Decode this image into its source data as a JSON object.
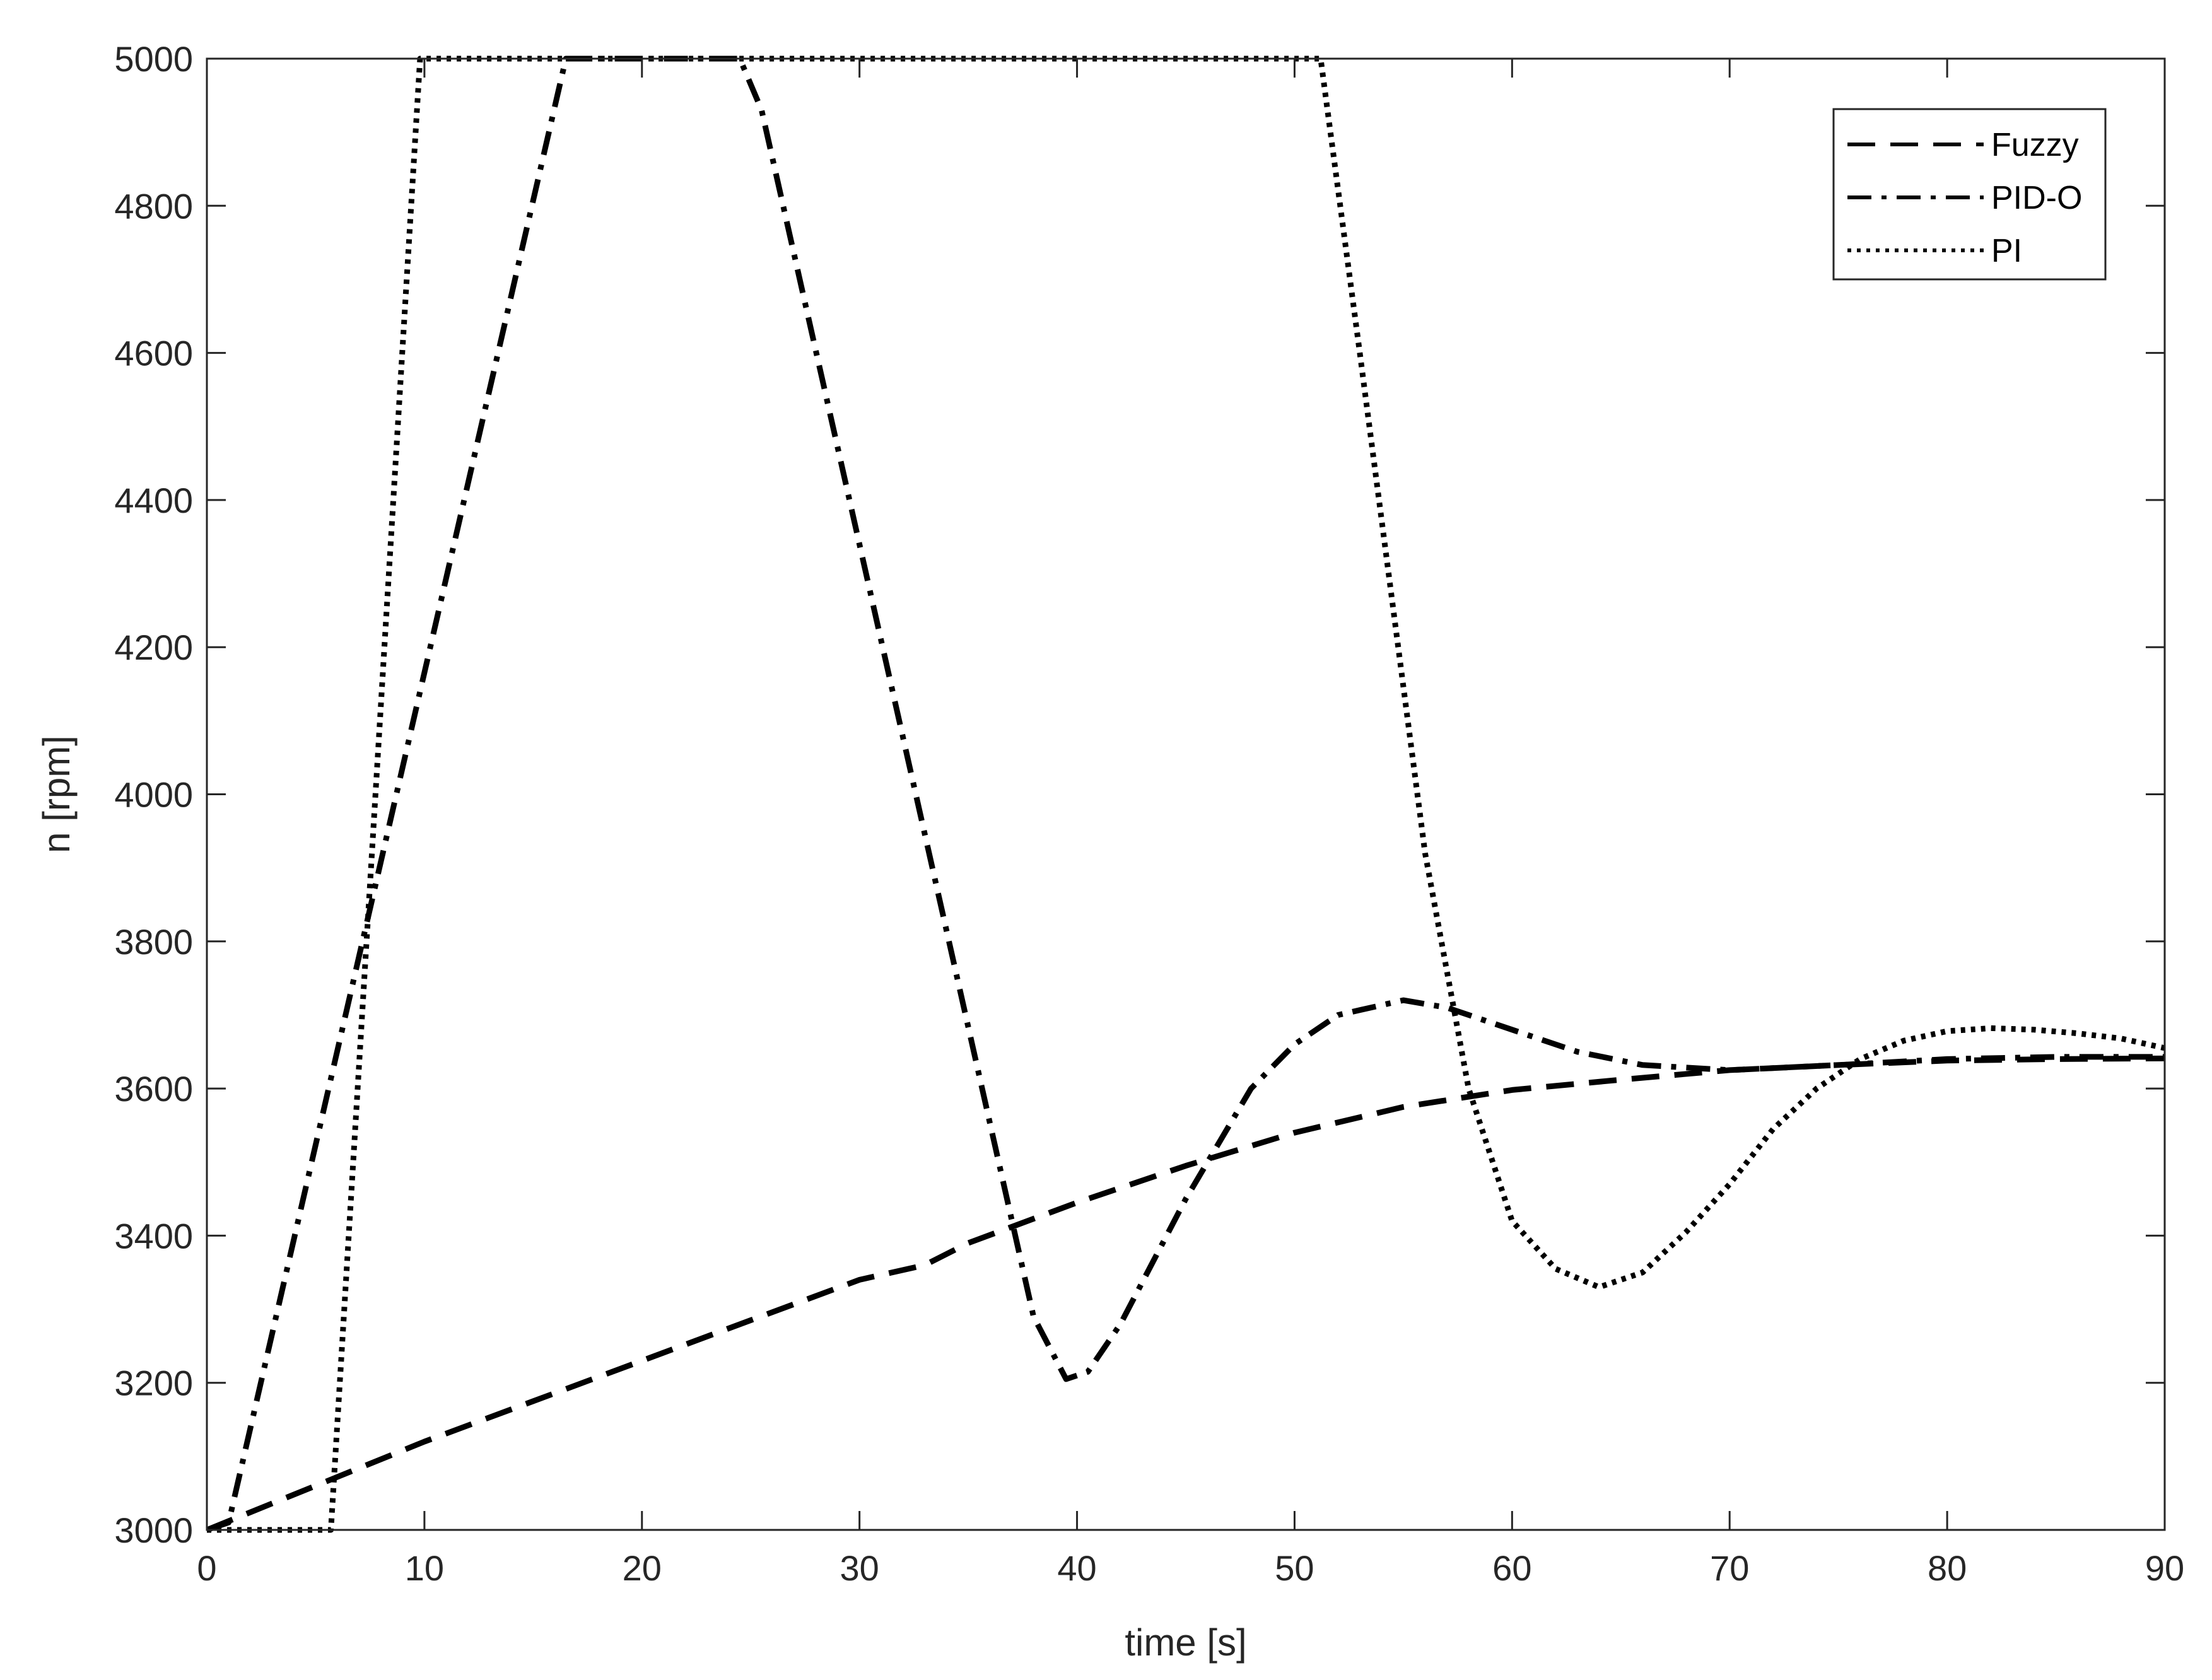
{
  "chart_data": {
    "type": "line",
    "title": "",
    "xlabel": "time [s]",
    "ylabel": "n [rpm]",
    "xlim": [
      0,
      90
    ],
    "ylim": [
      3000,
      5000
    ],
    "xticks": [
      0,
      10,
      20,
      30,
      40,
      50,
      60,
      70,
      80,
      90
    ],
    "yticks": [
      3000,
      3200,
      3400,
      3600,
      3800,
      4000,
      4200,
      4400,
      4600,
      4800,
      5000
    ],
    "grid": false,
    "box": true,
    "legend_position": "top-right",
    "series": [
      {
        "name": "Fuzzy",
        "style": "dashed",
        "color": "#000000",
        "x": [
          0,
          5,
          10,
          15,
          20,
          25,
          30,
          33,
          35,
          40,
          45,
          50,
          55,
          60,
          65,
          70,
          75,
          80,
          85,
          90
        ],
        "y": [
          3000,
          3060,
          3120,
          3175,
          3230,
          3285,
          3340,
          3360,
          3390,
          3445,
          3495,
          3540,
          3575,
          3598,
          3612,
          3625,
          3632,
          3638,
          3640,
          3641
        ]
      },
      {
        "name": "PID-O",
        "style": "dash-dot",
        "color": "#000000",
        "x": [
          0,
          1,
          16.5,
          24.5,
          25.5,
          38,
          39.5,
          40.5,
          42,
          45,
          48,
          50,
          52,
          55,
          57,
          60,
          63,
          66,
          70,
          75,
          80,
          85,
          90
        ],
        "y": [
          3000,
          3010,
          5000,
          5000,
          4930,
          3290,
          3205,
          3215,
          3280,
          3450,
          3600,
          3660,
          3700,
          3720,
          3710,
          3680,
          3650,
          3632,
          3625,
          3632,
          3640,
          3643,
          3643
        ]
      },
      {
        "name": "PI",
        "style": "dotted",
        "color": "#000000",
        "x": [
          0,
          5.7,
          9.8,
          51.2,
          53,
          56,
          58,
          60,
          62,
          64,
          66,
          68,
          70,
          72,
          74,
          76,
          78,
          80,
          82,
          84,
          86,
          88,
          90
        ],
        "y": [
          3000,
          3000,
          5000,
          5000,
          4600,
          3920,
          3600,
          3420,
          3355,
          3330,
          3350,
          3405,
          3470,
          3545,
          3600,
          3640,
          3665,
          3678,
          3682,
          3680,
          3675,
          3668,
          3655
        ]
      }
    ]
  }
}
